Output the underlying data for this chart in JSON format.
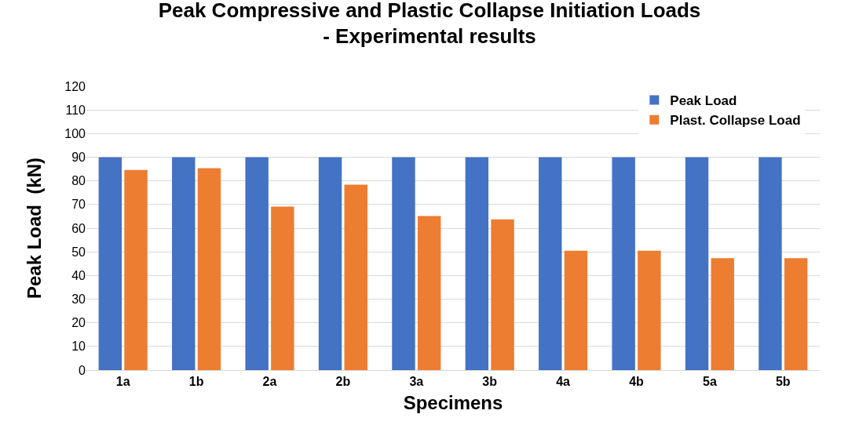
{
  "chart_data": {
    "type": "bar",
    "title": "Peak Compressive and Plastic Collapse Initiation Loads\n- Experimental results",
    "xlabel": "Specimens",
    "ylabel": "Peak Load  (kN)",
    "categories": [
      "1a",
      "1b",
      "2a",
      "2b",
      "3a",
      "3b",
      "4a",
      "4b",
      "5a",
      "5b"
    ],
    "series": [
      {
        "name": "Peak Load",
        "color": "#4472c4",
        "values": [
          90,
          90,
          90,
          90,
          90,
          90,
          90,
          90,
          90,
          90
        ]
      },
      {
        "name": "Plast. Collapse Load",
        "color": "#ed7d31",
        "values": [
          84.6,
          85.4,
          69.1,
          78.4,
          65.1,
          63.7,
          50.5,
          50.5,
          47.3,
          47.3
        ]
      }
    ],
    "ylim": [
      0,
      120
    ],
    "yticks": [
      0,
      10,
      20,
      30,
      40,
      50,
      60,
      70,
      80,
      90,
      100,
      110,
      120
    ],
    "grid": "y",
    "legend": "top right"
  }
}
